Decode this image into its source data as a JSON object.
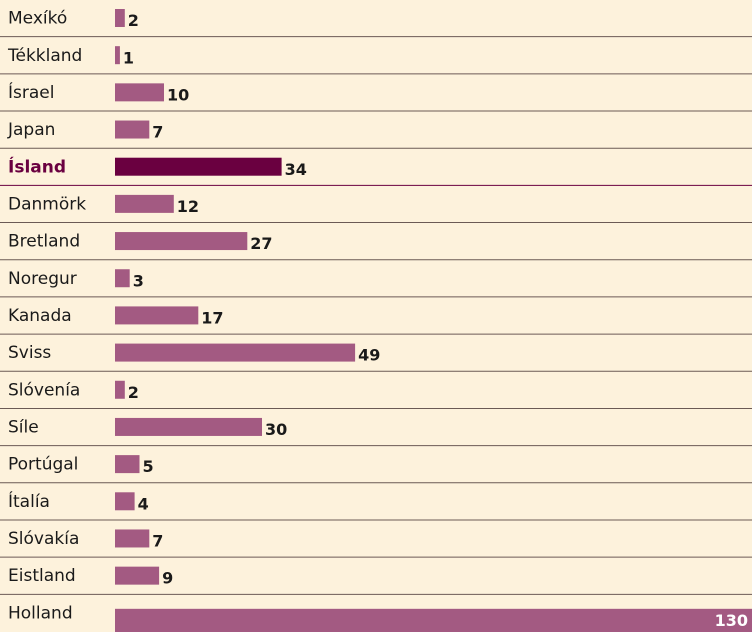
{
  "chart_data": {
    "type": "bar",
    "orientation": "horizontal",
    "categories": [
      "Mexíkó",
      "Tékkland",
      "Ísrael",
      "Japan",
      "Ísland",
      "Danmörk",
      "Bretland",
      "Noregur",
      "Kanada",
      "Sviss",
      "Slóvenía",
      "Síle",
      "Portúgal",
      "Ítalía",
      "Slóvakía",
      "Eistland",
      "Holland"
    ],
    "values": [
      2,
      1,
      10,
      7,
      34,
      12,
      27,
      3,
      17,
      49,
      2,
      30,
      5,
      4,
      7,
      9,
      130
    ],
    "color": "#a35a82",
    "highlight": 4,
    "highlight_color": "#6a0040"
  }
}
